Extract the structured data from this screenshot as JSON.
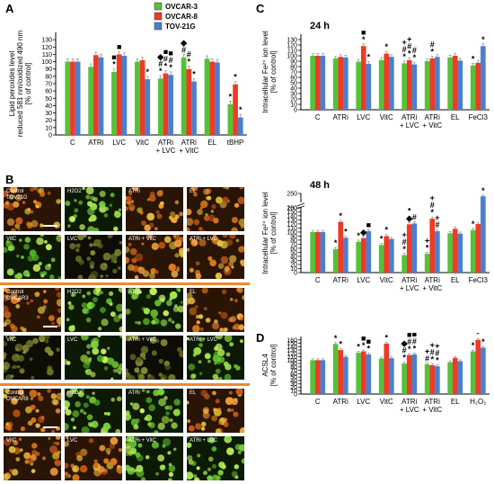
{
  "panels": {
    "A": "A",
    "B": "B",
    "C": "C",
    "D": "D"
  },
  "legend": {
    "items": [
      {
        "label": "OVCAR-3",
        "color": "#55c137"
      },
      {
        "label": "OVCAR-8",
        "color": "#ee3a26"
      },
      {
        "label": "TOV-21G",
        "color": "#4a7fce"
      }
    ]
  },
  "chart_data": [
    {
      "id": "A",
      "type": "bar",
      "ylabel": "Lipid peroxides level\nreduced 581 nm/oxidized 490 nm\n[% of control]",
      "ylim": [
        0,
        140
      ],
      "yticks": [
        0,
        10,
        20,
        30,
        40,
        50,
        60,
        70,
        80,
        90,
        100,
        110,
        120,
        130
      ],
      "categories": [
        [
          "C"
        ],
        [
          "ATRi"
        ],
        [
          "LVC"
        ],
        [
          "VitC"
        ],
        [
          "ATRi",
          "+ LVC"
        ],
        [
          "ATRi",
          "+ VitC"
        ],
        [
          "EL"
        ],
        [
          "tBHP"
        ]
      ],
      "series": [
        {
          "name": "OVCAR-3",
          "values": [
            100,
            93,
            86,
            100,
            77,
            106,
            104,
            42
          ]
        },
        {
          "name": "OVCAR-8",
          "values": [
            100,
            109,
            110,
            102,
            84,
            90,
            100,
            69
          ]
        },
        {
          "name": "TOV-21G",
          "values": [
            100,
            106,
            108,
            76,
            82,
            73,
            99,
            24
          ]
        }
      ],
      "annotations": [
        {
          "cat": 2,
          "series": 0,
          "text": "*"
        },
        {
          "cat": 2,
          "series": 0,
          "text": "■"
        },
        {
          "cat": 2,
          "series": 1,
          "text": "■"
        },
        {
          "cat": 3,
          "series": 2,
          "text": "*"
        },
        {
          "cat": 4,
          "series": 0,
          "text": "*"
        },
        {
          "cat": 4,
          "series": 0,
          "text": "#"
        },
        {
          "cat": 4,
          "series": 0,
          "text": "◆"
        },
        {
          "cat": 4,
          "series": 1,
          "text": "*"
        },
        {
          "cat": 4,
          "series": 1,
          "text": "#"
        },
        {
          "cat": 4,
          "series": 1,
          "text": "■"
        },
        {
          "cat": 4,
          "series": 2,
          "text": "*"
        },
        {
          "cat": 4,
          "series": 2,
          "text": "#"
        },
        {
          "cat": 4,
          "series": 2,
          "text": "■"
        },
        {
          "cat": 5,
          "series": 0,
          "text": "#"
        },
        {
          "cat": 5,
          "series": 0,
          "text": "◆"
        },
        {
          "cat": 5,
          "series": 1,
          "text": "*"
        },
        {
          "cat": 5,
          "series": 1,
          "text": "#"
        },
        {
          "cat": 5,
          "series": 2,
          "text": "*"
        },
        {
          "cat": 7,
          "series": 0,
          "text": "*"
        },
        {
          "cat": 7,
          "series": 1,
          "text": "*"
        },
        {
          "cat": 7,
          "series": 2,
          "text": "*"
        }
      ]
    },
    {
      "id": "C1",
      "type": "bar",
      "title": "24 h",
      "ylabel": "Intracellular Fe²⁺ ion level\n[% of control]",
      "ylim": [
        0,
        140
      ],
      "yticks": [
        0,
        10,
        20,
        30,
        40,
        50,
        60,
        70,
        80,
        90,
        100,
        110,
        120,
        130
      ],
      "categories": [
        [
          "C"
        ],
        [
          "ATRi"
        ],
        [
          "LVC"
        ],
        [
          "VitC"
        ],
        [
          "ATRi",
          "+ LVC"
        ],
        [
          "ATRi",
          "+ VitC"
        ],
        [
          "EL"
        ],
        [
          "FeCl3"
        ]
      ],
      "series": [
        {
          "name": "OVCAR-3",
          "values": [
            100,
            95,
            89,
            92,
            86,
            90,
            97,
            82
          ]
        },
        {
          "name": "OVCAR-8",
          "values": [
            100,
            98,
            118,
            104,
            92,
            95,
            100,
            87
          ]
        },
        {
          "name": "TOV-21G",
          "values": [
            100,
            97,
            85,
            98,
            84,
            98,
            91,
            118
          ]
        }
      ],
      "annotations": [
        {
          "cat": 2,
          "series": 1,
          "text": "*"
        },
        {
          "cat": 2,
          "series": 1,
          "text": "■"
        },
        {
          "cat": 2,
          "series": 2,
          "text": "*"
        },
        {
          "cat": 3,
          "series": 1,
          "text": "*"
        },
        {
          "cat": 4,
          "series": 0,
          "text": "*"
        },
        {
          "cat": 4,
          "series": 0,
          "text": "#"
        },
        {
          "cat": 4,
          "series": 0,
          "text": "+"
        },
        {
          "cat": 4,
          "series": 1,
          "text": "*"
        },
        {
          "cat": 4,
          "series": 1,
          "text": "#"
        },
        {
          "cat": 4,
          "series": 1,
          "text": "+"
        },
        {
          "cat": 4,
          "series": 2,
          "text": "*"
        },
        {
          "cat": 4,
          "series": 2,
          "text": "#"
        },
        {
          "cat": 5,
          "series": 1,
          "text": "*"
        },
        {
          "cat": 5,
          "series": 1,
          "text": "#"
        },
        {
          "cat": 7,
          "series": 0,
          "text": "*"
        },
        {
          "cat": 7,
          "series": 2,
          "text": "*"
        }
      ]
    },
    {
      "id": "C2",
      "type": "bar",
      "title": "48 h",
      "ylabel": "Intracellular Fe²⁺ ion level\n[% of control]",
      "ylim": [
        0,
        250
      ],
      "yticks": [
        0,
        10,
        20,
        30,
        40,
        50,
        60,
        70,
        80,
        90,
        100,
        110,
        120,
        130,
        140,
        150,
        160,
        200,
        250
      ],
      "axis_break": [
        160,
        200
      ],
      "categories": [
        [
          "C"
        ],
        [
          "ATRi"
        ],
        [
          "LVC"
        ],
        [
          "VitC"
        ],
        [
          "ATRi",
          "+ LVC"
        ],
        [
          "ATRi",
          "+ VitC"
        ],
        [
          "EL"
        ],
        [
          "FeCl3"
        ]
      ],
      "series": [
        {
          "name": "OVCAR-3",
          "values": [
            100,
            58,
            76,
            68,
            43,
            46,
            97,
            105
          ]
        },
        {
          "name": "OVCAR-8",
          "values": [
            100,
            125,
            85,
            90,
            119,
            133,
            108,
            120
          ]
        },
        {
          "name": "TOV-21G",
          "values": [
            100,
            86,
            102,
            83,
            121,
            102,
            96,
            240
          ]
        }
      ],
      "annotations": [
        {
          "cat": 1,
          "series": 0,
          "text": "*"
        },
        {
          "cat": 1,
          "series": 1,
          "text": "*"
        },
        {
          "cat": 1,
          "series": 2,
          "text": "*"
        },
        {
          "cat": 2,
          "series": 0,
          "text": "*"
        },
        {
          "cat": 2,
          "series": 1,
          "text": "◆"
        },
        {
          "cat": 2,
          "series": 2,
          "text": "■"
        },
        {
          "cat": 3,
          "series": 0,
          "text": "*"
        },
        {
          "cat": 3,
          "series": 1,
          "text": "*"
        },
        {
          "cat": 4,
          "series": 0,
          "text": "*"
        },
        {
          "cat": 4,
          "series": 0,
          "text": "#"
        },
        {
          "cat": 4,
          "series": 0,
          "text": "+"
        },
        {
          "cat": 4,
          "series": 1,
          "text": "◆"
        },
        {
          "cat": 4,
          "series": 1,
          "text": "*"
        },
        {
          "cat": 4,
          "series": 2,
          "text": "#"
        },
        {
          "cat": 5,
          "series": 0,
          "text": "*"
        },
        {
          "cat": 5,
          "series": 0,
          "text": "+"
        },
        {
          "cat": 5,
          "series": 1,
          "text": "*"
        },
        {
          "cat": 5,
          "series": 1,
          "text": "#"
        },
        {
          "cat": 5,
          "series": 1,
          "text": "+"
        },
        {
          "cat": 5,
          "series": 2,
          "text": "#"
        },
        {
          "cat": 5,
          "series": 2,
          "text": "+"
        },
        {
          "cat": 7,
          "series": 0,
          "text": "*"
        },
        {
          "cat": 7,
          "series": 2,
          "text": "*"
        }
      ]
    },
    {
      "id": "D",
      "type": "bar",
      "ylabel": "ACSL4\n[% of control]",
      "ylim": [
        0,
        170
      ],
      "yticks": [
        0,
        10,
        20,
        30,
        40,
        50,
        60,
        70,
        80,
        90,
        100,
        110,
        120,
        130,
        140,
        150,
        160
      ],
      "categories": [
        [
          "C"
        ],
        [
          "ATRi"
        ],
        [
          "LVC"
        ],
        [
          "VitC"
        ],
        [
          "ATRi",
          "+ LVC"
        ],
        [
          "ATRi",
          "+ VitC"
        ],
        [
          "EL"
        ],
        [
          "H₂O₂"
        ]
      ],
      "series": [
        {
          "name": "OVCAR-3",
          "values": [
            100,
            148,
            122,
            105,
            90,
            88,
            94,
            126
          ]
        },
        {
          "name": "OVCAR-8",
          "values": [
            100,
            130,
            126,
            149,
            115,
            85,
            107,
            160
          ]
        },
        {
          "name": "TOV-21G",
          "values": [
            100,
            110,
            117,
            106,
            117,
            82,
            97,
            137
          ]
        }
      ],
      "annotations": [
        {
          "cat": 1,
          "series": 0,
          "text": "*"
        },
        {
          "cat": 1,
          "series": 1,
          "text": "*"
        },
        {
          "cat": 2,
          "series": 0,
          "text": "*"
        },
        {
          "cat": 2,
          "series": 1,
          "text": "*"
        },
        {
          "cat": 2,
          "series": 1,
          "text": "■"
        },
        {
          "cat": 2,
          "series": 2,
          "text": "*"
        },
        {
          "cat": 2,
          "series": 2,
          "text": "■"
        },
        {
          "cat": 3,
          "series": 1,
          "text": "*"
        },
        {
          "cat": 4,
          "series": 0,
          "text": "*"
        },
        {
          "cat": 4,
          "series": 0,
          "text": "#"
        },
        {
          "cat": 4,
          "series": 0,
          "text": "◆"
        },
        {
          "cat": 4,
          "series": 1,
          "text": "*"
        },
        {
          "cat": 4,
          "series": 1,
          "text": "#"
        },
        {
          "cat": 4,
          "series": 1,
          "text": "■"
        },
        {
          "cat": 4,
          "series": 2,
          "text": "*"
        },
        {
          "cat": 4,
          "series": 2,
          "text": "#"
        },
        {
          "cat": 4,
          "series": 2,
          "text": "■"
        },
        {
          "cat": 5,
          "series": 0,
          "text": "#"
        },
        {
          "cat": 5,
          "series": 0,
          "text": "+"
        },
        {
          "cat": 5,
          "series": 1,
          "text": "*"
        },
        {
          "cat": 5,
          "series": 1,
          "text": "#"
        },
        {
          "cat": 5,
          "series": 1,
          "text": "+"
        },
        {
          "cat": 5,
          "series": 2,
          "text": "*"
        },
        {
          "cat": 5,
          "series": 2,
          "text": "#"
        },
        {
          "cat": 5,
          "series": 2,
          "text": "+"
        },
        {
          "cat": 7,
          "series": 0,
          "text": "*"
        },
        {
          "cat": 7,
          "series": 1,
          "text": "*"
        },
        {
          "cat": 7,
          "series": 2,
          "text": "*"
        }
      ]
    }
  ],
  "micrographs": {
    "rows": [
      {
        "labels": [
          "Control\nTOV21G",
          "H2O2",
          "ATRi",
          "EL"
        ],
        "tones": [
          "orange",
          "green",
          "orange",
          "orange"
        ]
      },
      {
        "labels": [
          "VitC",
          "LVC",
          "ATRi + VitC",
          "ATRi + LVC"
        ],
        "tones": [
          "green",
          "dark",
          "orange",
          "orange"
        ]
      },
      {
        "labels": [
          "Control\nOVCAR3",
          "H2O2",
          "ATRi",
          "EL"
        ],
        "tones": [
          "orange",
          "green",
          "green",
          "orange"
        ]
      },
      {
        "labels": [
          "VitC",
          "LVC",
          "ATRi + VitC",
          "ATRi + LVC"
        ],
        "tones": [
          "dark",
          "green",
          "dark",
          "green"
        ]
      },
      {
        "labels": [
          "Control\nOVCAR8",
          "H2O2",
          "ATRi",
          "EL"
        ],
        "tones": [
          "orange",
          "green",
          "green",
          "orange"
        ]
      },
      {
        "labels": [
          "VitC",
          "LVC",
          "ATRi + VitC",
          "ATRi + LVC"
        ],
        "tones": [
          "orange",
          "orange",
          "green",
          "green"
        ]
      }
    ]
  }
}
